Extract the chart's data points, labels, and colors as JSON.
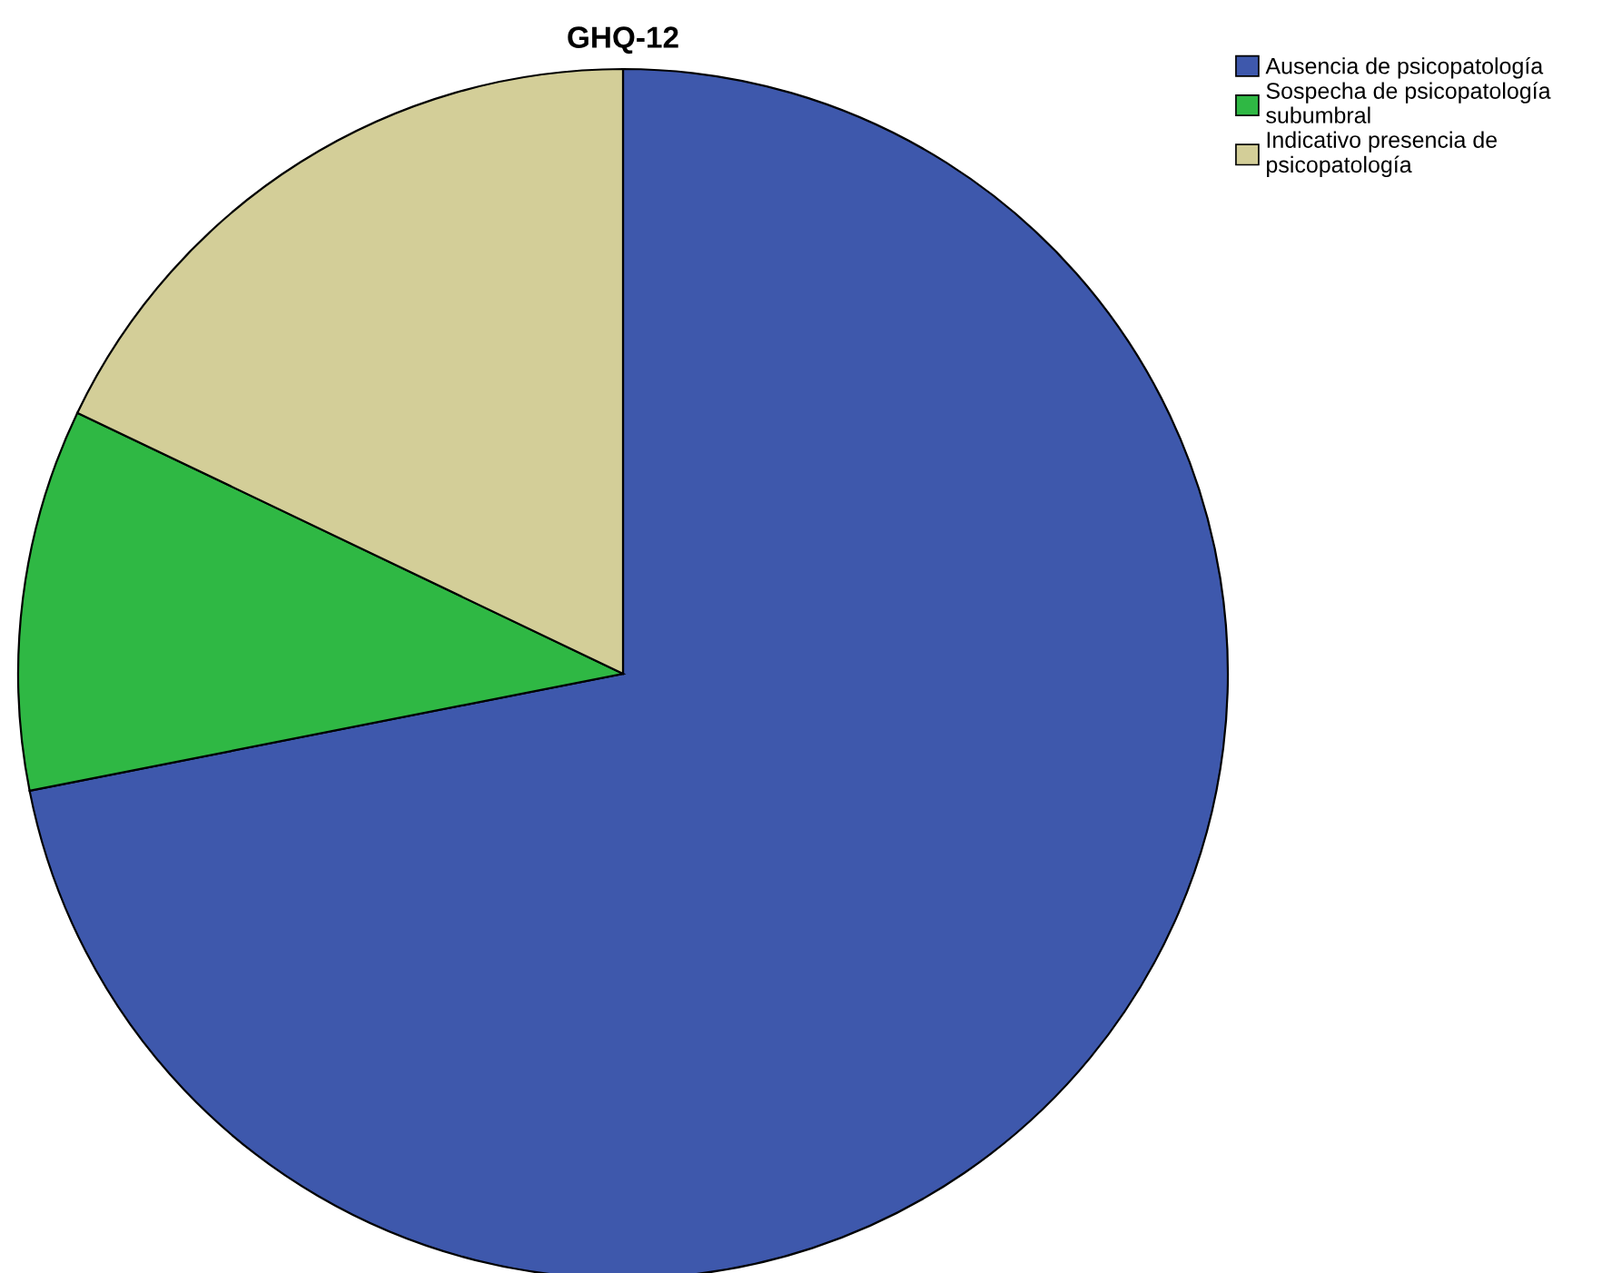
{
  "chart_data": {
    "type": "pie",
    "title": "GHQ-12",
    "categories": [
      "Ausencia de psicopatología",
      "Sospecha de psicopatología\nsubumbral",
      "Indicativo presencia de\npsicopatología"
    ],
    "values": [
      71.9,
      10.2,
      17.9
    ],
    "colors": [
      "#3e58ac",
      "#2fb844",
      "#d3ce98"
    ],
    "legend": "top right"
  }
}
